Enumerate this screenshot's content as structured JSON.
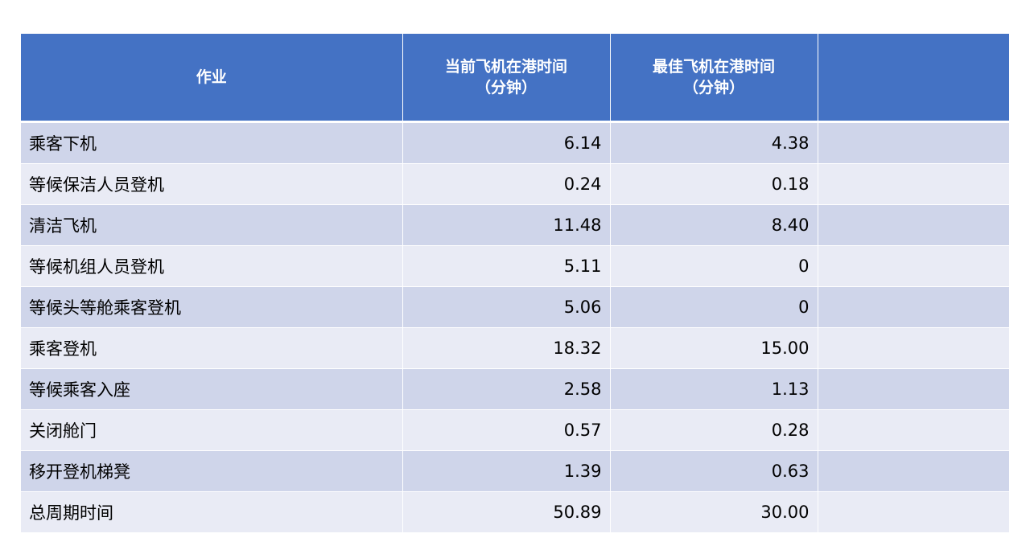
{
  "table": {
    "headers": {
      "task": "作业",
      "current_line1": "当前飞机在港时间",
      "current_line2": "（分钟）",
      "best_line1": "最佳飞机在港时间",
      "best_line2": "（分钟）",
      "extra": ""
    },
    "rows": [
      {
        "task": "乘客下机",
        "current": "6.14",
        "best": "4.38",
        "extra": ""
      },
      {
        "task": "等候保洁人员登机",
        "current": "0.24",
        "best": "0.18",
        "extra": ""
      },
      {
        "task": "清洁飞机",
        "current": "11.48",
        "best": "8.40",
        "extra": ""
      },
      {
        "task": "等候机组人员登机",
        "current": "5.11",
        "best": "0",
        "extra": ""
      },
      {
        "task": "等候头等舱乘客登机",
        "current": "5.06",
        "best": "0",
        "extra": ""
      },
      {
        "task": "乘客登机",
        "current": "18.32",
        "best": "15.00",
        "extra": ""
      },
      {
        "task": "等候乘客入座",
        "current": "2.58",
        "best": "1.13",
        "extra": ""
      },
      {
        "task": "关闭舱门",
        "current": "0.57",
        "best": "0.28",
        "extra": ""
      },
      {
        "task": "移开登机梯凳",
        "current": "1.39",
        "best": "0.63",
        "extra": ""
      },
      {
        "task": "总周期时间",
        "current": "50.89",
        "best": "30.00",
        "extra": ""
      }
    ]
  },
  "colors": {
    "header_bg": "#4472c4",
    "row_dark": "#cfd5ea",
    "row_light": "#e9ebf5"
  }
}
